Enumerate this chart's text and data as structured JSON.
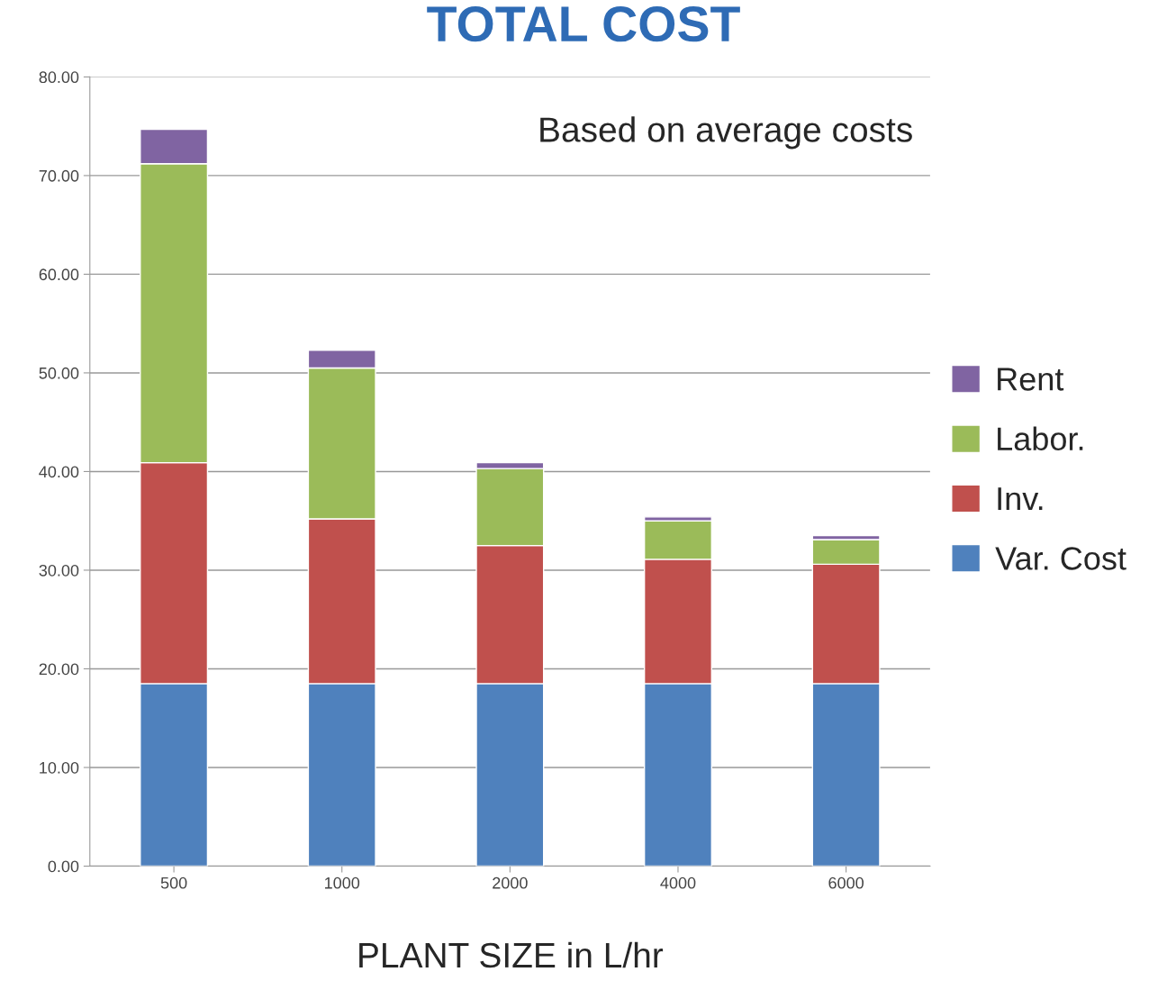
{
  "chart_data": {
    "type": "bar",
    "title": "TOTAL COST",
    "xlabel": "PLANT SIZE in L/hr",
    "stacked": true,
    "categories": [
      "500",
      "1000",
      "2000",
      "4000",
      "6000"
    ],
    "series": [
      {
        "name": "Var. Cost",
        "color": "#4f81bd",
        "values": [
          18.5,
          18.5,
          18.5,
          18.5,
          18.5
        ]
      },
      {
        "name": "Inv.",
        "color": "#c0504d",
        "values": [
          22.4,
          16.7,
          14.0,
          12.6,
          12.1
        ]
      },
      {
        "name": "Labor.",
        "color": "#9bbb59",
        "values": [
          30.3,
          15.3,
          7.8,
          3.9,
          2.5
        ]
      },
      {
        "name": "Rent",
        "color": "#8064a2",
        "values": [
          3.5,
          1.8,
          0.6,
          0.4,
          0.4
        ]
      }
    ],
    "ylim": [
      0,
      80
    ],
    "yticks": [
      {
        "value": 0,
        "label": "0.00"
      },
      {
        "value": 10,
        "label": "10.00"
      },
      {
        "value": 20,
        "label": "20.00"
      },
      {
        "value": 30,
        "label": "30.00"
      },
      {
        "value": 40,
        "label": "40.00"
      },
      {
        "value": 50,
        "label": "50.00"
      },
      {
        "value": 60,
        "label": "60.00"
      },
      {
        "value": 70,
        "label": "70.00"
      },
      {
        "value": 80,
        "label": "80.00"
      }
    ],
    "grid": "y",
    "legend": "right",
    "annotations": [
      "Based on average costs"
    ]
  }
}
